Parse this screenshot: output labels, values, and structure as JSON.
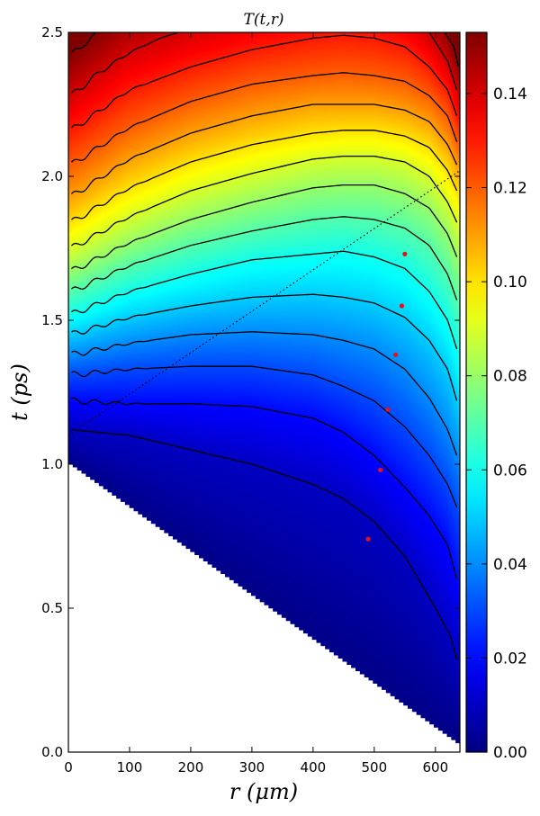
{
  "chart_data": {
    "type": "heatmap",
    "title": "T(t,r)",
    "xlabel": "r   (μm)",
    "ylabel": "t   (ps)",
    "xlim": [
      0,
      640
    ],
    "ylim": [
      0,
      2.5
    ],
    "x_ticks": [
      "0",
      "100",
      "200",
      "300",
      "400",
      "500",
      "600"
    ],
    "x_tick_values": [
      0,
      100,
      200,
      300,
      400,
      500,
      600
    ],
    "y_ticks": [
      "0.0",
      "0.5",
      "1.0",
      "1.5",
      "2.0",
      "2.5"
    ],
    "y_tick_values": [
      0,
      0.5,
      1.0,
      1.5,
      2.0,
      2.5
    ],
    "colorbar": {
      "colormap": "jet",
      "range": [
        0,
        0.153
      ],
      "ticks": [
        "0.00",
        "0.02",
        "0.04",
        "0.06",
        "0.08",
        "0.10",
        "0.12",
        "0.14"
      ],
      "tick_values": [
        0,
        0.02,
        0.04,
        0.06,
        0.08,
        0.1,
        0.12,
        0.14
      ]
    },
    "masked_region": {
      "description": "undefined region below front, white",
      "front": [
        [
          0,
          1.0
        ],
        [
          640,
          0.02
        ]
      ]
    },
    "contours": [
      {
        "level": 0.01,
        "points": [
          [
            5,
            1.12
          ],
          [
            100,
            1.1
          ],
          [
            200,
            1.05
          ],
          [
            300,
            1.0
          ],
          [
            400,
            0.93
          ],
          [
            450,
            0.88
          ],
          [
            500,
            0.8
          ],
          [
            550,
            0.68
          ],
          [
            600,
            0.5
          ],
          [
            625,
            0.4
          ],
          [
            635,
            0.32
          ]
        ]
      },
      {
        "level": 0.02,
        "points": [
          [
            5,
            1.22
          ],
          [
            100,
            1.21
          ],
          [
            200,
            1.21
          ],
          [
            300,
            1.2
          ],
          [
            400,
            1.16
          ],
          [
            450,
            1.11
          ],
          [
            500,
            1.03
          ],
          [
            550,
            0.92
          ],
          [
            590,
            0.82
          ],
          [
            620,
            0.72
          ],
          [
            635,
            0.6
          ]
        ]
      },
      {
        "level": 0.03,
        "points": [
          [
            5,
            1.31
          ],
          [
            100,
            1.33
          ],
          [
            200,
            1.34
          ],
          [
            300,
            1.34
          ],
          [
            400,
            1.31
          ],
          [
            450,
            1.27
          ],
          [
            500,
            1.22
          ],
          [
            550,
            1.13
          ],
          [
            590,
            1.03
          ],
          [
            620,
            0.93
          ],
          [
            635,
            0.85
          ]
        ]
      },
      {
        "level": 0.04,
        "points": [
          [
            5,
            1.38
          ],
          [
            100,
            1.42
          ],
          [
            200,
            1.45
          ],
          [
            300,
            1.46
          ],
          [
            400,
            1.45
          ],
          [
            450,
            1.43
          ],
          [
            500,
            1.4
          ],
          [
            550,
            1.33
          ],
          [
            590,
            1.23
          ],
          [
            620,
            1.12
          ],
          [
            635,
            1.03
          ]
        ]
      },
      {
        "level": 0.05,
        "points": [
          [
            5,
            1.45
          ],
          [
            100,
            1.51
          ],
          [
            200,
            1.55
          ],
          [
            300,
            1.58
          ],
          [
            400,
            1.59
          ],
          [
            450,
            1.58
          ],
          [
            500,
            1.56
          ],
          [
            550,
            1.51
          ],
          [
            590,
            1.43
          ],
          [
            620,
            1.33
          ],
          [
            635,
            1.22
          ]
        ]
      },
      {
        "level": 0.06,
        "points": [
          [
            5,
            1.52
          ],
          [
            100,
            1.6
          ],
          [
            200,
            1.66
          ],
          [
            300,
            1.71
          ],
          [
            400,
            1.73
          ],
          [
            450,
            1.74
          ],
          [
            500,
            1.72
          ],
          [
            550,
            1.68
          ],
          [
            590,
            1.6
          ],
          [
            620,
            1.5
          ],
          [
            635,
            1.4
          ]
        ]
      },
      {
        "level": 0.07,
        "points": [
          [
            5,
            1.6
          ],
          [
            100,
            1.69
          ],
          [
            200,
            1.76
          ],
          [
            300,
            1.81
          ],
          [
            400,
            1.85
          ],
          [
            450,
            1.86
          ],
          [
            500,
            1.85
          ],
          [
            550,
            1.82
          ],
          [
            590,
            1.76
          ],
          [
            620,
            1.66
          ],
          [
            635,
            1.57
          ]
        ]
      },
      {
        "level": 0.08,
        "points": [
          [
            5,
            1.67
          ],
          [
            100,
            1.77
          ],
          [
            200,
            1.85
          ],
          [
            300,
            1.91
          ],
          [
            400,
            1.96
          ],
          [
            450,
            1.97
          ],
          [
            500,
            1.97
          ],
          [
            550,
            1.94
          ],
          [
            590,
            1.89
          ],
          [
            620,
            1.8
          ],
          [
            635,
            1.72
          ]
        ]
      },
      {
        "level": 0.09,
        "points": [
          [
            5,
            1.75
          ],
          [
            100,
            1.86
          ],
          [
            200,
            1.95
          ],
          [
            300,
            2.01
          ],
          [
            400,
            2.06
          ],
          [
            450,
            2.07
          ],
          [
            500,
            2.07
          ],
          [
            550,
            2.05
          ],
          [
            590,
            2.0
          ],
          [
            620,
            1.91
          ],
          [
            635,
            1.84
          ]
        ]
      },
      {
        "level": 0.1,
        "points": [
          [
            5,
            1.84
          ],
          [
            100,
            1.96
          ],
          [
            200,
            2.05
          ],
          [
            300,
            2.11
          ],
          [
            400,
            2.15
          ],
          [
            450,
            2.16
          ],
          [
            500,
            2.16
          ],
          [
            550,
            2.14
          ],
          [
            590,
            2.1
          ],
          [
            620,
            2.02
          ],
          [
            635,
            1.95
          ]
        ]
      },
      {
        "level": 0.11,
        "points": [
          [
            5,
            1.93
          ],
          [
            100,
            2.06
          ],
          [
            200,
            2.15
          ],
          [
            300,
            2.21
          ],
          [
            400,
            2.25
          ],
          [
            450,
            2.25
          ],
          [
            500,
            2.25
          ],
          [
            550,
            2.23
          ],
          [
            590,
            2.19
          ],
          [
            620,
            2.11
          ],
          [
            635,
            2.04
          ]
        ]
      },
      {
        "level": 0.12,
        "points": [
          [
            5,
            2.04
          ],
          [
            100,
            2.17
          ],
          [
            200,
            2.26
          ],
          [
            300,
            2.32
          ],
          [
            400,
            2.35
          ],
          [
            450,
            2.36
          ],
          [
            500,
            2.35
          ],
          [
            550,
            2.33
          ],
          [
            590,
            2.28
          ],
          [
            620,
            2.21
          ],
          [
            635,
            2.12
          ]
        ]
      },
      {
        "level": 0.13,
        "points": [
          [
            5,
            2.16
          ],
          [
            100,
            2.3
          ],
          [
            200,
            2.38
          ],
          [
            300,
            2.44
          ],
          [
            400,
            2.48
          ],
          [
            450,
            2.49
          ],
          [
            500,
            2.48
          ],
          [
            550,
            2.45
          ],
          [
            590,
            2.38
          ],
          [
            620,
            2.3
          ],
          [
            635,
            2.21
          ]
        ]
      }
    ],
    "top_left_contours": [
      {
        "level": 0.14,
        "points": [
          [
            5,
            2.28
          ],
          [
            50,
            2.36
          ],
          [
            100,
            2.43
          ],
          [
            150,
            2.48
          ],
          [
            180,
            2.5
          ]
        ]
      },
      {
        "level": 0.15,
        "points": [
          [
            5,
            2.42
          ],
          [
            25,
            2.46
          ],
          [
            50,
            2.5
          ]
        ]
      }
    ],
    "right_edge_contours": [
      {
        "points": [
          [
            590,
            2.5
          ],
          [
            620,
            2.4
          ],
          [
            635,
            2.3
          ]
        ]
      },
      {
        "points": [
          [
            615,
            2.5
          ],
          [
            630,
            2.45
          ],
          [
            638,
            2.38
          ]
        ]
      }
    ],
    "dotted_line": [
      [
        0,
        1.1
      ],
      [
        640,
        2.02
      ]
    ],
    "red_points": [
      [
        490,
        0.74
      ],
      [
        510,
        0.98
      ],
      [
        522,
        1.19
      ],
      [
        535,
        1.38
      ],
      [
        545,
        1.55
      ],
      [
        550,
        1.73
      ]
    ],
    "colors": {
      "contour": "#000000",
      "marker": "#e8101c",
      "mask": "#ffffff"
    }
  }
}
